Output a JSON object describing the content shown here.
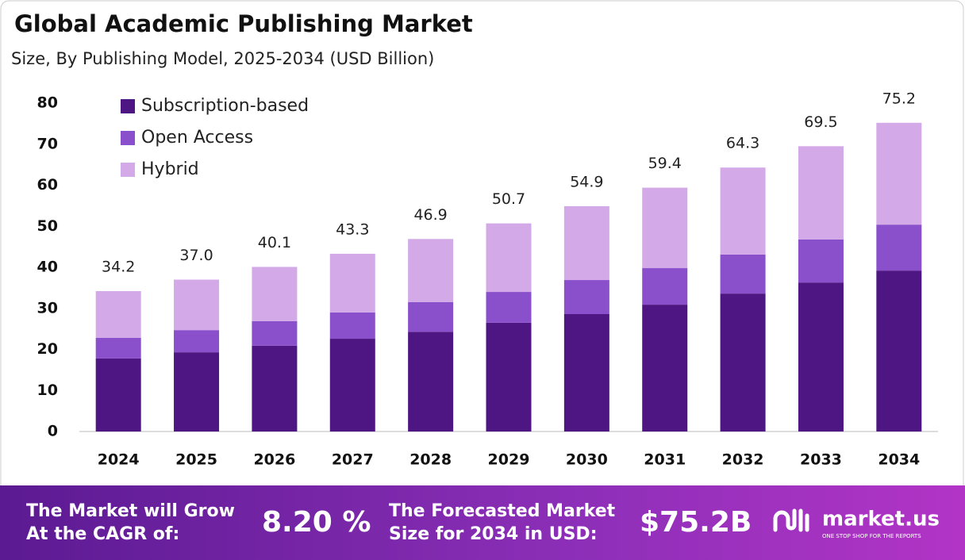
{
  "chart_data": {
    "type": "stacked_bar",
    "title": "Global Academic Publishing Market",
    "subtitle": "Size, By Publishing Model, 2025-2034 (USD Billion)",
    "categories": [
      "2024",
      "2025",
      "2026",
      "2027",
      "2028",
      "2029",
      "2030",
      "2031",
      "2032",
      "2033",
      "2034"
    ],
    "series": [
      {
        "name": "Subscription-based",
        "color": "#4e1683",
        "values": [
          17.8,
          19.3,
          20.9,
          22.6,
          24.3,
          26.5,
          28.6,
          30.9,
          33.6,
          36.3,
          39.2
        ]
      },
      {
        "name": "Open Access",
        "color": "#8a4fcb",
        "values": [
          5.0,
          5.4,
          6.0,
          6.4,
          7.2,
          7.5,
          8.3,
          8.9,
          9.5,
          10.5,
          11.2
        ]
      },
      {
        "name": "Hybrid",
        "color": "#d3a9e8",
        "values": [
          11.4,
          12.3,
          13.2,
          14.3,
          15.4,
          16.7,
          18.0,
          19.6,
          21.2,
          22.7,
          24.8
        ]
      }
    ],
    "totals": {
      "values": [
        34.2,
        37.0,
        40.1,
        43.3,
        46.9,
        50.7,
        54.9,
        59.4,
        64.3,
        69.5,
        75.2
      ],
      "value_labels": [
        "34.2",
        "37.0",
        "40.1",
        "43.3",
        "46.9",
        "50.7",
        "54.9",
        "59.4",
        "64.3",
        "69.5",
        "75.2"
      ]
    },
    "ylim": [
      0,
      80
    ],
    "yticks": [
      0,
      10,
      20,
      30,
      40,
      50,
      60,
      70,
      80
    ],
    "grid": false,
    "legend": "top-left"
  },
  "footer": {
    "cagr_text": "The Market will Grow At the CAGR of:",
    "cagr_value": "8.20 %",
    "forecast_text": "The Forecasted Market Size for 2034 in USD:",
    "forecast_value": "$75.2B",
    "brand": "market.us",
    "tagline": "ONE STOP SHOP FOR THE REPORTS"
  }
}
